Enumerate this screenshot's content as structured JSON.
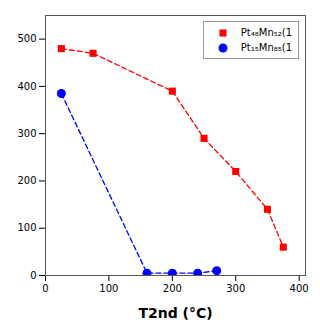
{
  "chart_data": {
    "type": "line",
    "xlabel": "T2nd (°C)",
    "xlim": [
      0,
      410
    ],
    "xticks": [
      0,
      100,
      200,
      300,
      400
    ],
    "ylim": [
      0,
      550
    ],
    "yticks": [
      0,
      100,
      200,
      300,
      400,
      500
    ],
    "grid": false,
    "legend": "upper right",
    "series": [
      {
        "name": "Pt₄₈Mn₅₂(1",
        "color": "red",
        "marker": "square",
        "line_style": "dashed",
        "x": [
          25,
          75,
          200,
          250,
          300,
          350,
          375
        ],
        "values": [
          480,
          470,
          390,
          290,
          220,
          140,
          60
        ]
      },
      {
        "name": "Pt₁₅Mn₈₅(1",
        "color": "blue",
        "marker": "circle",
        "line_style": "dashed",
        "x": [
          25,
          160,
          200,
          240,
          270
        ],
        "values": [
          385,
          5,
          5,
          5,
          10
        ]
      }
    ]
  }
}
